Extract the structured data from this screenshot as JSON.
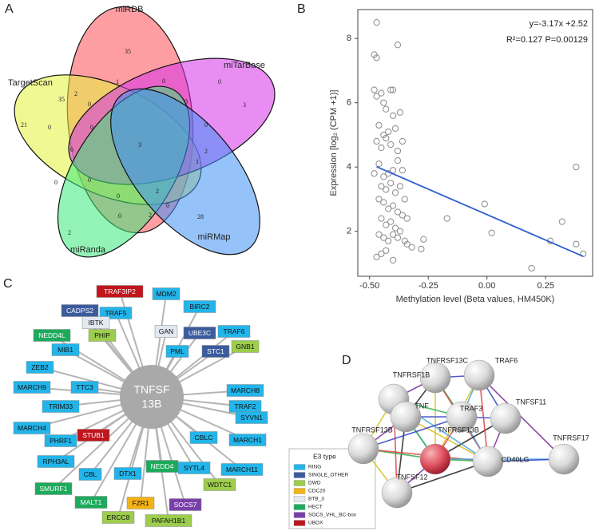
{
  "venn": {
    "panel_label": "A",
    "sets": [
      {
        "name": "miRDB",
        "color": "#ff4f55"
      },
      {
        "name": "TargetScan",
        "color": "#e4f23c"
      },
      {
        "name": "miTarBase",
        "color": "#d632ea"
      },
      {
        "name": "miRanda",
        "color": "#3bea7a"
      },
      {
        "name": "miRMap",
        "color": "#3f8ff5"
      }
    ],
    "counts": [
      35,
      1,
      0,
      0,
      35,
      2,
      0,
      0,
      3,
      21,
      0,
      0,
      3,
      0,
      2,
      1,
      0,
      0,
      0,
      0,
      2,
      0,
      2,
      0,
      2,
      28
    ]
  },
  "chart_data": {
    "type": "scatter",
    "panel_label": "B",
    "x_label": "Methylation level (Beta values, HM450K)",
    "y_label": "Expression [log₂ (CPM +1)]",
    "annotations": [
      "y=-3.17x +2.52",
      "R²=0.127 P=0.00129"
    ],
    "x": [
      -0.47,
      -0.48,
      -0.47,
      -0.38,
      -0.48,
      -0.47,
      -0.45,
      -0.44,
      -0.41,
      -0.4,
      -0.43,
      -0.4,
      -0.37,
      -0.46,
      -0.44,
      -0.42,
      -0.39,
      -0.47,
      -0.45,
      -0.43,
      -0.41,
      -0.38,
      -0.36,
      -0.48,
      -0.46,
      -0.44,
      -0.42,
      -0.4,
      -0.38,
      -0.36,
      -0.45,
      -0.43,
      -0.41,
      -0.39,
      -0.37,
      -0.35,
      -0.46,
      -0.44,
      -0.42,
      -0.4,
      -0.38,
      -0.36,
      -0.34,
      -0.45,
      -0.43,
      -0.41,
      -0.39,
      -0.37,
      -0.46,
      -0.44,
      -0.42,
      -0.4,
      -0.38,
      -0.35,
      -0.47,
      -0.45,
      -0.43,
      -0.4,
      -0.34,
      -0.32,
      -0.28,
      -0.27,
      -0.17,
      -0.01,
      0.02,
      0.19,
      0.27,
      0.32,
      0.38,
      0.38,
      0.41
    ],
    "values": [
      8.5,
      7.5,
      7.4,
      7.8,
      6.4,
      6.2,
      6.3,
      6.0,
      6.4,
      6.4,
      5.8,
      5.6,
      5.7,
      5.3,
      5.0,
      5.1,
      5.2,
      4.8,
      4.6,
      4.9,
      4.7,
      4.5,
      4.8,
      3.8,
      4.1,
      3.7,
      3.8,
      3.9,
      4.2,
      3.9,
      3.4,
      3.3,
      3.5,
      3.2,
      3.4,
      3.0,
      3.0,
      2.9,
      2.7,
      2.8,
      2.6,
      2.5,
      2.4,
      2.4,
      2.2,
      2.3,
      2.1,
      2.0,
      1.9,
      1.8,
      1.7,
      1.9,
      1.8,
      1.7,
      1.2,
      1.3,
      1.4,
      1.1,
      1.6,
      1.5,
      1.45,
      1.75,
      2.4,
      2.85,
      1.95,
      0.85,
      1.7,
      2.3,
      4.0,
      1.6,
      1.3
    ],
    "color": "#8a8a8a",
    "fit": {
      "x": [
        -0.47,
        0.41
      ],
      "values": [
        4.01,
        1.22
      ],
      "color": "#2f5fd0"
    },
    "xlim": [
      -0.55,
      0.45
    ],
    "ylim": [
      0.6,
      8.9
    ],
    "xticks": [
      {
        "value": -0.5,
        "label": "-0.50"
      },
      -0.25,
      {
        "value": 0,
        "label": "0.00"
      },
      0.25
    ],
    "yticks": [
      2,
      4,
      6,
      8
    ]
  },
  "network": {
    "panel_label": "C",
    "center": [
      "TNFSF",
      "13B"
    ],
    "nodes": [
      {
        "label": "TRAF3IP2",
        "type": 7
      },
      {
        "label": "MDM2",
        "type": 0
      },
      {
        "label": "CADPS2",
        "type": 1
      },
      {
        "label": "TRAF5",
        "type": 0
      },
      {
        "label": "BIRC2",
        "type": 0
      },
      {
        "label": "IBTK",
        "type": 4
      },
      {
        "label": "GAN",
        "type": 4
      },
      {
        "label": "UBE3C",
        "type": 1
      },
      {
        "label": "NEDD4L",
        "type": 5
      },
      {
        "label": "PHIP",
        "type": 2
      },
      {
        "label": "TRAF6",
        "type": 0
      },
      {
        "label": "GNB1",
        "type": 2
      },
      {
        "label": "MIB1",
        "type": 0
      },
      {
        "label": "PML",
        "type": 0
      },
      {
        "label": "STC1",
        "type": 1
      },
      {
        "label": "ZEB2",
        "type": 0
      },
      {
        "label": "MARCH9",
        "type": 0
      },
      {
        "label": "TTC3",
        "type": 0
      },
      {
        "label": "MARCH8",
        "type": 0
      },
      {
        "label": "TRIM33",
        "type": 0
      },
      {
        "label": "TRAF2",
        "type": 0
      },
      {
        "label": "SYVN1",
        "type": 0
      },
      {
        "label": "MARCH4",
        "type": 0
      },
      {
        "label": "CBLC",
        "type": 0
      },
      {
        "label": "MARCH1",
        "type": 0
      },
      {
        "label": "PHRF1",
        "type": 0
      },
      {
        "label": "STUB1",
        "type": 7
      },
      {
        "label": "RPH3AL",
        "type": 0
      },
      {
        "label": "SYTL4",
        "type": 0
      },
      {
        "label": "MARCH11",
        "type": 0
      },
      {
        "label": "CBL",
        "type": 0
      },
      {
        "label": "DTX1",
        "type": 0
      },
      {
        "label": "NEDD4",
        "type": 5
      },
      {
        "label": "WDTC1",
        "type": 2
      },
      {
        "label": "SMURF1",
        "type": 5
      },
      {
        "label": "MALT1",
        "type": 5
      },
      {
        "label": "FZR1",
        "type": 3
      },
      {
        "label": "SOCS7",
        "type": 6
      },
      {
        "label": "ERCC8",
        "type": 2
      },
      {
        "label": "PAFAH1B1",
        "type": 2
      }
    ],
    "legend": {
      "title": "E3 type",
      "types": [
        {
          "name": "RING",
          "color": "#22b5ea"
        },
        {
          "name": "SINGLE_OTHER",
          "color": "#3b5b9c"
        },
        {
          "name": "DWD",
          "color": "#9ccd4c"
        },
        {
          "name": "CDC20",
          "color": "#f4b216"
        },
        {
          "name": "BTB_3",
          "color": "#e1e9f1"
        },
        {
          "name": "HECT",
          "color": "#1daa5c"
        },
        {
          "name": "SOCS_VHL_BC-box",
          "color": "#7a40a9"
        },
        {
          "name": "UBOX",
          "color": "#c1151d"
        }
      ]
    }
  },
  "string_network": {
    "panel_label": "D",
    "nodes": [
      "TNFRSF13C",
      "TRAF6",
      "TNFRSF1B",
      "TNF",
      "TRAF3",
      "TNFSF11",
      "TNFRSF13B",
      "TNFRSF17",
      "TNFSF12",
      "TNFRSF13B",
      "CD40LG"
    ]
  }
}
